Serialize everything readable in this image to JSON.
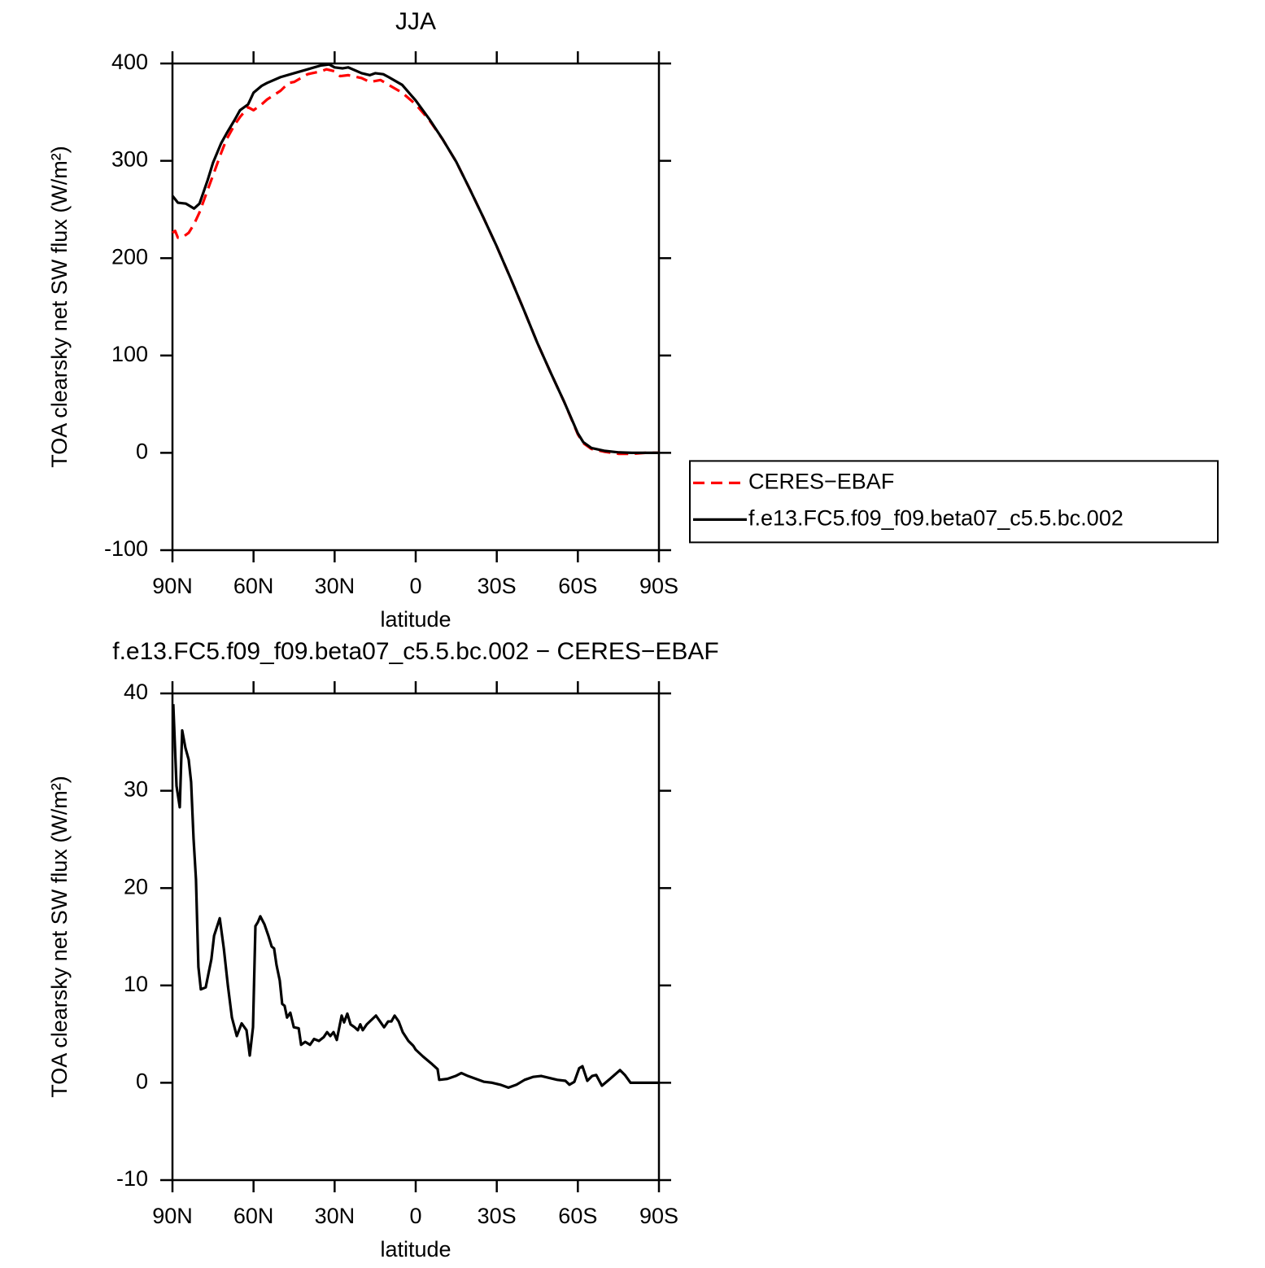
{
  "chart_data": [
    {
      "type": "line",
      "title": "JJA",
      "xlabel": "latitude",
      "ylabel": "TOA clearsky net SW flux (W/m²)",
      "xlim": [
        90,
        -90
      ],
      "xticks": [
        {
          "value": 90,
          "label": "90N"
        },
        {
          "value": 60,
          "label": "60N"
        },
        {
          "value": 30,
          "label": "30N"
        },
        0,
        {
          "value": -30,
          "label": "30S"
        },
        {
          "value": -60,
          "label": "60S"
        },
        {
          "value": -90,
          "label": "90S"
        }
      ],
      "ylim": [
        -100,
        400
      ],
      "yticks": [
        -100,
        0,
        100,
        200,
        300,
        400
      ],
      "legend": "right",
      "series": [
        {
          "name": "CERES−EBAF",
          "color": "#ff0000",
          "dashed": true,
          "x": [
            90,
            89,
            88,
            86,
            84,
            82,
            80,
            77,
            75,
            72,
            70,
            67,
            65,
            62,
            60,
            57,
            55,
            50,
            47,
            45,
            40,
            35,
            33,
            30,
            28,
            25,
            20,
            17,
            13,
            10,
            5,
            0,
            -5,
            -10,
            -15,
            -20,
            -25,
            -30,
            -35,
            -40,
            -45,
            -50,
            -55,
            -60,
            -62,
            -65,
            -70,
            -75,
            -80,
            -85,
            -90
          ],
          "values": [
            226,
            228,
            221,
            222,
            226,
            235,
            247,
            270,
            285,
            308,
            322,
            337,
            345,
            355,
            352,
            358,
            363,
            372,
            380,
            381,
            389,
            392,
            394,
            392,
            387,
            388,
            385,
            381,
            383,
            378,
            370,
            358,
            342,
            322,
            299,
            271,
            242,
            212,
            180,
            147,
            113,
            82,
            52,
            19,
            10,
            4,
            1,
            -1,
            -1,
            0,
            0
          ]
        },
        {
          "name": "f.e13.FC5.f09_f09.beta07_c5.5.bc.002",
          "color": "#000000",
          "dashed": false,
          "x": [
            90,
            88,
            85,
            82,
            80,
            77,
            75,
            72,
            70,
            67,
            65,
            62,
            60,
            57,
            55,
            50,
            45,
            40,
            35,
            32,
            30,
            27,
            25,
            20,
            17,
            15,
            12,
            10,
            5,
            0,
            -5,
            -10,
            -15,
            -20,
            -25,
            -30,
            -35,
            -40,
            -45,
            -50,
            -55,
            -60,
            -62,
            -65,
            -70,
            -75,
            -80,
            -85,
            -90
          ],
          "values": [
            264,
            257,
            256,
            251,
            256,
            280,
            298,
            318,
            328,
            342,
            352,
            358,
            370,
            377,
            380,
            386,
            390,
            394,
            398,
            399,
            396,
            395,
            396,
            390,
            388,
            390,
            389,
            386,
            378,
            362,
            343,
            322,
            299,
            271,
            242,
            212,
            180,
            147,
            113,
            82,
            52,
            20,
            11,
            5,
            2,
            0.5,
            0,
            0,
            0
          ]
        }
      ]
    },
    {
      "type": "line",
      "title": "f.e13.FC5.f09_f09.beta07_c5.5.bc.002 − CERES−EBAF",
      "xlabel": "latitude",
      "ylabel": "TOA clearsky net SW flux (W/m²)",
      "xlim": [
        90,
        -90
      ],
      "xticks": [
        {
          "value": 90,
          "label": "90N"
        },
        {
          "value": 60,
          "label": "60N"
        },
        {
          "value": 30,
          "label": "30N"
        },
        0,
        {
          "value": -30,
          "label": "30S"
        },
        {
          "value": -60,
          "label": "60S"
        },
        {
          "value": -90,
          "label": "90S"
        }
      ],
      "ylim": [
        -10,
        40
      ],
      "yticks": [
        -10,
        0,
        10,
        20,
        30,
        40
      ],
      "series": [
        {
          "color": "#000000",
          "dashed": false,
          "x": [
            89.7,
            88.5,
            87.3,
            86.4,
            85.2,
            84.0,
            83.1,
            82.2,
            81.3,
            80.4,
            79.5,
            77.7,
            75.6,
            74.6,
            72.5,
            71.0,
            69.5,
            68.0,
            66.2,
            64.4,
            62.6,
            61.4,
            60.2,
            59.3,
            58.4,
            57.5,
            56.0,
            54.5,
            53.3,
            52.4,
            51.5,
            50.3,
            49.4,
            48.5,
            47.6,
            46.4,
            45.1,
            43.3,
            42.4,
            40.9,
            39.1,
            37.6,
            35.8,
            34.0,
            32.8,
            31.6,
            30.4,
            29.2,
            27.4,
            26.5,
            25.3,
            24.1,
            22.6,
            21.4,
            20.5,
            19.6,
            18.1,
            16.6,
            14.7,
            13.2,
            11.7,
            10.2,
            9.0,
            7.8,
            6.3,
            4.8,
            2.7,
            0.9,
            0,
            -2.7,
            -5.7,
            -8.1,
            -8.7,
            -11.7,
            -14.8,
            -16.9,
            -19.3,
            -22.3,
            -25.3,
            -28.3,
            -31.3,
            -34.3,
            -37.3,
            -40.3,
            -43.4,
            -46.4,
            -49.4,
            -52.4,
            -55.4,
            -56.9,
            -58.7,
            -60.5,
            -61.7,
            -63.5,
            -65.3,
            -66.8,
            -68.9,
            -71.9,
            -75.6,
            -77.4,
            -79.5,
            -90
          ],
          "values": [
            38.9,
            30.5,
            28.3,
            36.2,
            34.4,
            33.2,
            30.9,
            25.1,
            20.9,
            11.9,
            9.6,
            9.8,
            12.7,
            15.1,
            16.9,
            13.8,
            10.0,
            6.7,
            4.8,
            6.1,
            5.4,
            2.8,
            5.7,
            16.1,
            16.5,
            17.1,
            16.3,
            15.1,
            14.0,
            13.8,
            12.1,
            10.5,
            8.1,
            7.9,
            6.7,
            7.2,
            5.7,
            5.6,
            3.9,
            4.2,
            3.9,
            4.5,
            4.3,
            4.7,
            5.2,
            4.8,
            5.2,
            4.4,
            6.9,
            6.2,
            7.1,
            6.0,
            5.7,
            5.4,
            6.0,
            5.4,
            6.0,
            6.4,
            6.9,
            6.3,
            5.7,
            6.3,
            6.3,
            6.9,
            6.3,
            5.2,
            4.3,
            3.8,
            3.4,
            2.7,
            2.0,
            1.4,
            0.3,
            0.4,
            0.7,
            1.0,
            0.7,
            0.4,
            0.1,
            0,
            -0.2,
            -0.5,
            -0.2,
            0.3,
            0.6,
            0.7,
            0.5,
            0.3,
            0.2,
            -0.2,
            0.1,
            1.5,
            1.7,
            0.2,
            0.7,
            0.8,
            -0.3,
            0.4,
            1.3,
            0.8,
            0,
            0
          ]
        }
      ]
    }
  ]
}
